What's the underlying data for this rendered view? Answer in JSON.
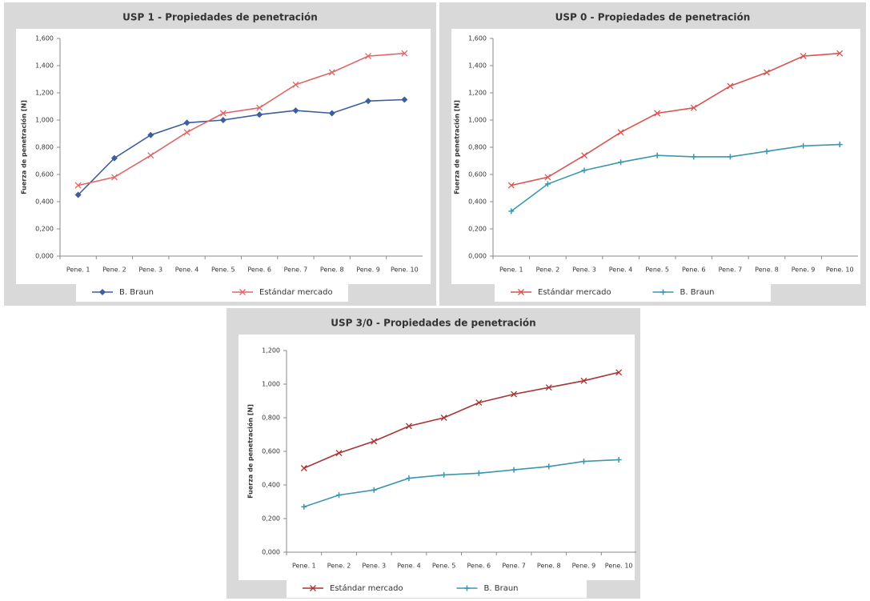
{
  "chart_data": [
    {
      "type": "line",
      "title": "USP 1 - Propiedades de penetración",
      "y_label": "Fuerza de penetración [N]",
      "categories": [
        "Pene. 1",
        "Pene. 2",
        "Pene. 3",
        "Pene. 4",
        "Pene. 5",
        "Pene. 6",
        "Pene. 7",
        "Pene. 8",
        "Pene. 9",
        "Pene. 10"
      ],
      "series": [
        {
          "name": "B. Braun",
          "color": "#3b5e9c",
          "marker": "diamond",
          "values": [
            0.45,
            0.72,
            0.89,
            0.98,
            1.0,
            1.04,
            1.07,
            1.05,
            1.14,
            1.15
          ]
        },
        {
          "name": "Estándar mercado",
          "color": "#e06666",
          "marker": "x",
          "values": [
            0.52,
            0.58,
            0.74,
            0.91,
            1.05,
            1.09,
            1.26,
            1.35,
            1.47,
            1.49
          ]
        }
      ],
      "ylim": [
        0,
        1.6
      ],
      "yticks": [
        {
          "value": 0,
          "label": "0,000"
        },
        {
          "value": 0.2,
          "label": "0,200"
        },
        {
          "value": 0.4,
          "label": "0,400"
        },
        {
          "value": 0.6,
          "label": "0,600"
        },
        {
          "value": 0.8,
          "label": "0,800"
        },
        {
          "value": 1.0,
          "label": "1,000"
        },
        {
          "value": 1.2,
          "label": "1,200"
        },
        {
          "value": 1.4,
          "label": "1,400"
        },
        {
          "value": 1.6,
          "label": "1,600"
        }
      ]
    },
    {
      "type": "line",
      "title": "USP 0 - Propiedades de penetración",
      "y_label": "Fuerza de penetración [N]",
      "categories": [
        "Pene. 1",
        "Pene. 2",
        "Pene. 3",
        "Pene. 4",
        "Pene. 5",
        "Pene. 6",
        "Pene. 7",
        "Pene. 8",
        "Pene. 9",
        "Pene. 10"
      ],
      "series": [
        {
          "name": "Estándar mercado",
          "color": "#d9534f",
          "marker": "x",
          "values": [
            0.52,
            0.58,
            0.74,
            0.91,
            1.05,
            1.09,
            1.25,
            1.35,
            1.47,
            1.49
          ]
        },
        {
          "name": "B. Braun",
          "color": "#3a97ad",
          "marker": "plus",
          "values": [
            0.33,
            0.53,
            0.63,
            0.69,
            0.74,
            0.73,
            0.73,
            0.77,
            0.81,
            0.82
          ]
        }
      ],
      "ylim": [
        0,
        1.6
      ],
      "yticks": [
        {
          "value": 0,
          "label": "0,000"
        },
        {
          "value": 0.2,
          "label": "0,200"
        },
        {
          "value": 0.4,
          "label": "0,400"
        },
        {
          "value": 0.6,
          "label": "0,600"
        },
        {
          "value": 0.8,
          "label": "0,800"
        },
        {
          "value": 1.0,
          "label": "1,000"
        },
        {
          "value": 1.2,
          "label": "1,200"
        },
        {
          "value": 1.4,
          "label": "1,400"
        },
        {
          "value": 1.6,
          "label": "1,600"
        }
      ]
    },
    {
      "type": "line",
      "title": "USP 3/0 - Propiedades de penetración",
      "y_label": "Fuerza de penetración [N]",
      "categories": [
        "Pene. 1",
        "Pene. 2",
        "Pene. 3",
        "Pene. 4",
        "Pene. 5",
        "Pene. 6",
        "Pene. 7",
        "Pene. 8",
        "Pene. 9",
        "Pene. 10"
      ],
      "series": [
        {
          "name": "Estándar mercado",
          "color": "#a83434",
          "marker": "x",
          "values": [
            0.5,
            0.59,
            0.66,
            0.75,
            0.8,
            0.89,
            0.94,
            0.98,
            1.02,
            1.07
          ]
        },
        {
          "name": "B. Braun",
          "color": "#3a97ad",
          "marker": "plus",
          "values": [
            0.27,
            0.34,
            0.37,
            0.44,
            0.46,
            0.47,
            0.49,
            0.51,
            0.54,
            0.55
          ]
        }
      ],
      "ylim": [
        0,
        1.2
      ],
      "yticks": [
        {
          "value": 0,
          "label": "0,000"
        },
        {
          "value": 0.2,
          "label": "0,200"
        },
        {
          "value": 0.4,
          "label": "0,400"
        },
        {
          "value": 0.6,
          "label": "0,600"
        },
        {
          "value": 0.8,
          "label": "0,800"
        },
        {
          "value": 1.0,
          "label": "1,000"
        },
        {
          "value": 1.2,
          "label": "1,200"
        }
      ]
    }
  ]
}
